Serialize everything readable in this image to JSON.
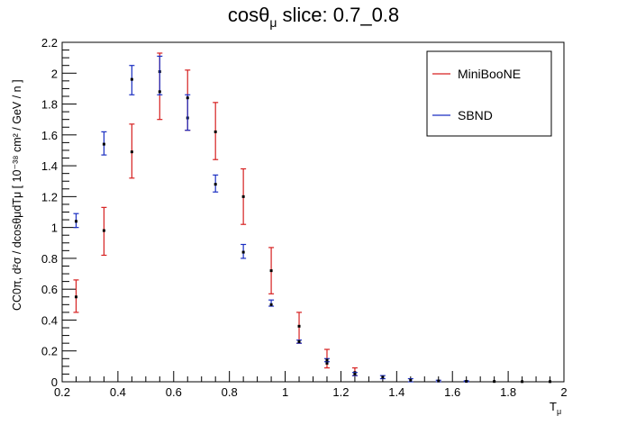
{
  "chart_data": {
    "type": "scatter",
    "title": {
      "pre": "cosθ",
      "sub": "μ",
      "post": " slice: 0.7_0.8"
    },
    "xlabel": {
      "main": "T",
      "sub": "μ"
    },
    "ylabel": "CC0π, d²σ / dcosθμdTμ [ 10⁻³⁸ cm² / GeV / n ]",
    "xlim": [
      0.2,
      2.0
    ],
    "ylim": [
      0,
      2.2
    ],
    "xticks": [
      "0.2",
      "0.4",
      "0.6",
      "0.8",
      "1",
      "1.2",
      "1.4",
      "1.6",
      "1.8",
      "2"
    ],
    "yticks": [
      "0",
      "0.2",
      "0.4",
      "0.6",
      "0.8",
      "1",
      "1.2",
      "1.4",
      "1.6",
      "1.8",
      "2",
      "2.2"
    ],
    "legend_position": "top-right",
    "series": [
      {
        "name": "MiniBooNE",
        "color": "#d62020",
        "points": [
          {
            "x": 0.25,
            "y": 0.55,
            "lo": 0.45,
            "hi": 0.66
          },
          {
            "x": 0.35,
            "y": 0.98,
            "lo": 0.82,
            "hi": 1.13
          },
          {
            "x": 0.45,
            "y": 1.49,
            "lo": 1.32,
            "hi": 1.67
          },
          {
            "x": 0.55,
            "y": 2.01,
            "lo": 1.7,
            "hi": 2.13
          },
          {
            "x": 0.65,
            "y": 1.71,
            "lo": 1.63,
            "hi": 2.02
          },
          {
            "x": 0.75,
            "y": 1.62,
            "lo": 1.44,
            "hi": 1.81
          },
          {
            "x": 0.85,
            "y": 1.2,
            "lo": 1.02,
            "hi": 1.38
          },
          {
            "x": 0.95,
            "y": 0.72,
            "lo": 0.57,
            "hi": 0.87
          },
          {
            "x": 1.05,
            "y": 0.36,
            "lo": 0.25,
            "hi": 0.45
          },
          {
            "x": 1.15,
            "y": 0.12,
            "lo": 0.09,
            "hi": 0.21
          },
          {
            "x": 1.25,
            "y": 0.06,
            "lo": 0.04,
            "hi": 0.09
          }
        ]
      },
      {
        "name": "SBND",
        "color": "#1a2ec2",
        "points": [
          {
            "x": 0.25,
            "y": 1.04,
            "lo": 1.0,
            "hi": 1.09
          },
          {
            "x": 0.35,
            "y": 1.54,
            "lo": 1.47,
            "hi": 1.62
          },
          {
            "x": 0.45,
            "y": 1.96,
            "lo": 1.86,
            "hi": 2.05
          },
          {
            "x": 0.55,
            "y": 1.88,
            "lo": 1.86,
            "hi": 2.11
          },
          {
            "x": 0.65,
            "y": 1.84,
            "lo": 1.63,
            "hi": 1.86
          },
          {
            "x": 0.75,
            "y": 1.28,
            "lo": 1.23,
            "hi": 1.34
          },
          {
            "x": 0.85,
            "y": 0.84,
            "lo": 0.8,
            "hi": 0.89
          },
          {
            "x": 0.95,
            "y": 0.5,
            "lo": 0.49,
            "hi": 0.53
          },
          {
            "x": 1.05,
            "y": 0.26,
            "lo": 0.25,
            "hi": 0.27
          },
          {
            "x": 1.15,
            "y": 0.14,
            "lo": 0.13,
            "hi": 0.15
          },
          {
            "x": 1.25,
            "y": 0.05,
            "lo": 0.04,
            "hi": 0.06
          },
          {
            "x": 1.35,
            "y": 0.03,
            "lo": 0.02,
            "hi": 0.04
          },
          {
            "x": 1.45,
            "y": 0.01,
            "lo": 0.0,
            "hi": 0.02
          },
          {
            "x": 1.55,
            "y": 0.005,
            "lo": 0.0,
            "hi": 0.01
          },
          {
            "x": 1.65,
            "y": 0.003,
            "lo": 0.0,
            "hi": 0.006
          },
          {
            "x": 1.75,
            "y": 0.002,
            "lo": 0.0,
            "hi": 0.004
          },
          {
            "x": 1.85,
            "y": 0.001,
            "lo": 0.0,
            "hi": 0.002
          },
          {
            "x": 1.95,
            "y": 0.001,
            "lo": 0.0,
            "hi": 0.002
          }
        ]
      }
    ]
  }
}
